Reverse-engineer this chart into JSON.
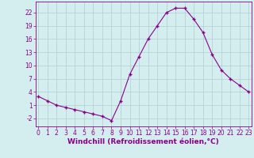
{
  "x": [
    0,
    1,
    2,
    3,
    4,
    5,
    6,
    7,
    8,
    9,
    10,
    11,
    12,
    13,
    14,
    15,
    16,
    17,
    18,
    19,
    20,
    21,
    22,
    23
  ],
  "y": [
    3,
    2,
    1,
    0.5,
    0,
    -0.5,
    -1,
    -1.5,
    -2.5,
    2,
    8,
    12,
    16,
    19,
    22,
    23,
    23,
    20.5,
    17.5,
    12.5,
    9,
    7,
    5.5,
    4
  ],
  "line_color": "#880088",
  "marker": "+",
  "marker_color": "#880088",
  "bg_color": "#d4eef0",
  "grid_color": "#b0cdd0",
  "tick_color": "#880088",
  "xlabel": "Windchill (Refroidissement éolien,°C)",
  "xlabel_color": "#880088",
  "yticks": [
    -2,
    1,
    4,
    7,
    10,
    13,
    16,
    19,
    22
  ],
  "xticks": [
    0,
    1,
    2,
    3,
    4,
    5,
    6,
    7,
    8,
    9,
    10,
    11,
    12,
    13,
    14,
    15,
    16,
    17,
    18,
    19,
    20,
    21,
    22,
    23
  ],
  "ylim": [
    -3.8,
    24.5
  ],
  "xlim": [
    -0.3,
    23.3
  ],
  "tick_fontsize": 5.5,
  "label_fontsize": 6.5
}
